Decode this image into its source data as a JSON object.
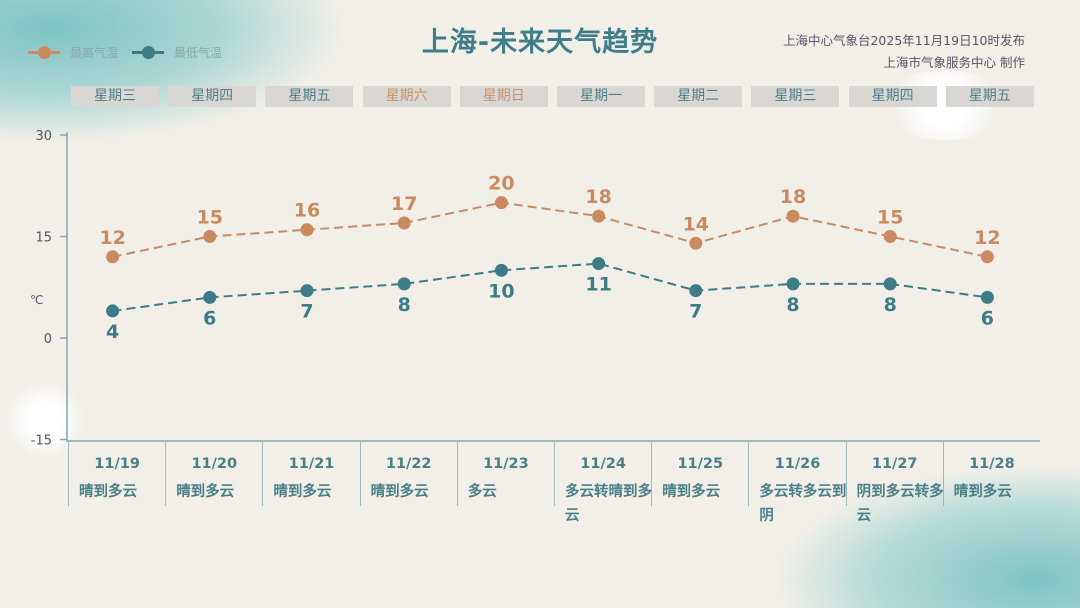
{
  "header": {
    "title": "上海-未来天气趋势",
    "issuer_line1": "上海中心气象台2025年11月19日10时发布",
    "issuer_line2": "上海市气象服务中心  制作"
  },
  "colors": {
    "high": "#c98a5f",
    "low": "#3d7c87",
    "axis": "#7fa9ae"
  },
  "chart_data": {
    "type": "line",
    "ylabel": "℃",
    "ylim": [
      -15,
      30
    ],
    "yticks": [
      "30",
      "15",
      "0",
      "-15"
    ],
    "legend_position": "top-left",
    "categories": [
      "11/19",
      "11/20",
      "11/21",
      "11/22",
      "11/23",
      "11/24",
      "11/25",
      "11/26",
      "11/27",
      "11/28"
    ],
    "weekdays": [
      "星期三",
      "星期四",
      "星期五",
      "星期六",
      "星期日",
      "星期一",
      "星期二",
      "星期三",
      "星期四",
      "星期五"
    ],
    "weekend_flags": [
      false,
      false,
      false,
      true,
      true,
      false,
      false,
      false,
      false,
      false
    ],
    "weather": [
      "晴到多云",
      "晴到多云",
      "晴到多云",
      "晴到多云",
      "多云",
      "多云转晴到多云",
      "晴到多云",
      "多云转多云到阴",
      "阴到多云转多云",
      "晴到多云"
    ],
    "series": [
      {
        "name": "最高气温",
        "values": [
          12,
          15,
          16,
          17,
          20,
          18,
          14,
          18,
          15,
          12
        ]
      },
      {
        "name": "最低气温",
        "values": [
          4,
          6,
          7,
          8,
          10,
          11,
          7,
          8,
          8,
          6
        ]
      }
    ]
  }
}
